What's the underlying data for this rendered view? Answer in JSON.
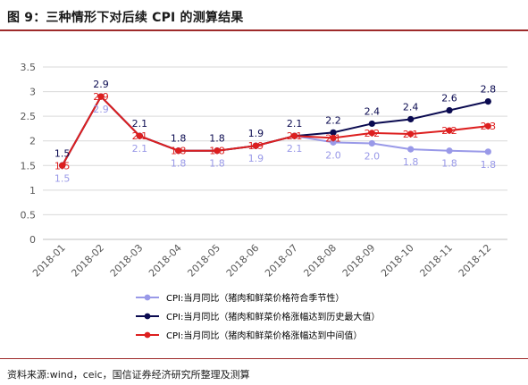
{
  "header": {
    "title": "图 9：三种情形下对后续 CPI 的测算结果"
  },
  "footer": {
    "source": "资料来源:wind，ceic，国信证券经济研究所整理及测算"
  },
  "chart_data": {
    "type": "line",
    "categories": [
      "2018-01",
      "2018-02",
      "2018-03",
      "2018-04",
      "2018-05",
      "2018-06",
      "2018-07",
      "2018-08",
      "2018-09",
      "2018-10",
      "2018-11",
      "2018-12"
    ],
    "y_ticks": [
      "0",
      "0.5",
      "1",
      "1.5",
      "2",
      "2.5",
      "3",
      "3.5"
    ],
    "ylim": [
      0,
      3.5
    ],
    "grid": true,
    "legend_position": "bottom",
    "series": [
      {
        "name": "CPI:当月同比（猪肉和鲜菜价格符合季节性）",
        "color": "#9999e8",
        "values": [
          1.5,
          2.9,
          2.1,
          1.8,
          1.8,
          1.9,
          2.1,
          1.97,
          1.95,
          1.83,
          1.8,
          1.78
        ],
        "labels": [
          "1.5",
          "2.9",
          "2.1",
          "1.8",
          "1.8",
          "1.9",
          "2.1",
          "2.0",
          "2.0",
          "1.8",
          "1.8",
          "1.8"
        ],
        "label_position": "below"
      },
      {
        "name": "CPI:当月同比（猪肉和鲜菜价格涨幅达到历史最大值）",
        "color": "#0a0a50",
        "values": [
          1.5,
          2.9,
          2.1,
          1.8,
          1.8,
          1.9,
          2.1,
          2.17,
          2.35,
          2.44,
          2.62,
          2.8
        ],
        "labels": [
          "1.5",
          "2.9",
          "2.1",
          "1.8",
          "1.8",
          "1.9",
          "2.1",
          "2.2",
          "2.4",
          "2.4",
          "2.6",
          "2.8"
        ],
        "label_position": "above"
      },
      {
        "name": "CPI:当月同比（猪肉和鲜菜价格涨幅达到中间值）",
        "color": "#dd1f1f",
        "values": [
          1.5,
          2.9,
          2.1,
          1.8,
          1.8,
          1.9,
          2.1,
          2.06,
          2.16,
          2.14,
          2.21,
          2.3
        ],
        "labels": [
          "1.5",
          "2.9",
          "2.1",
          "1.8",
          "1.8",
          "1.9",
          "2.1",
          "2.1",
          "2.2",
          "2.1",
          "2.2",
          "2.3"
        ],
        "label_position": "on"
      }
    ]
  }
}
